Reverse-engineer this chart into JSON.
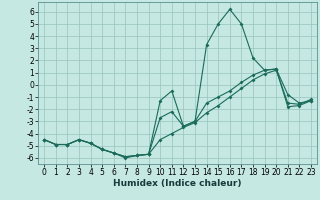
{
  "xlabel": "Humidex (Indice chaleur)",
  "bg_color": "#c5e8e3",
  "line_color": "#1a6b5a",
  "grid_color": "#99c4be",
  "xlim": [
    -0.5,
    23.5
  ],
  "ylim": [
    -6.5,
    6.8
  ],
  "yticks": [
    -6,
    -5,
    -4,
    -3,
    -2,
    -1,
    0,
    1,
    2,
    3,
    4,
    5,
    6
  ],
  "xticks": [
    0,
    1,
    2,
    3,
    4,
    5,
    6,
    7,
    8,
    9,
    10,
    11,
    12,
    13,
    14,
    15,
    16,
    17,
    18,
    19,
    20,
    21,
    22,
    23
  ],
  "line1_x": [
    0,
    1,
    2,
    3,
    4,
    5,
    6,
    7,
    8,
    9,
    10,
    11,
    12,
    13,
    14,
    15,
    16,
    17,
    18,
    19,
    20,
    21,
    22,
    23
  ],
  "line1_y": [
    -4.5,
    -4.9,
    -4.9,
    -4.5,
    -4.8,
    -5.3,
    -5.6,
    -6.0,
    -5.8,
    -5.7,
    -1.3,
    -0.5,
    -3.4,
    -3.0,
    3.3,
    5.0,
    6.2,
    5.0,
    2.2,
    1.2,
    1.3,
    -0.8,
    -1.5,
    -1.3
  ],
  "line2_x": [
    0,
    1,
    2,
    3,
    4,
    5,
    6,
    7,
    8,
    9,
    10,
    11,
    12,
    13,
    14,
    15,
    16,
    17,
    18,
    19,
    20,
    21,
    22,
    23
  ],
  "line2_y": [
    -4.5,
    -4.9,
    -4.9,
    -4.5,
    -4.8,
    -5.3,
    -5.6,
    -5.9,
    -5.8,
    -5.7,
    -2.7,
    -2.2,
    -3.4,
    -3.0,
    -1.5,
    -1.0,
    -0.5,
    0.2,
    0.8,
    1.2,
    1.3,
    -1.8,
    -1.7,
    -1.3
  ],
  "line3_x": [
    0,
    1,
    2,
    3,
    4,
    5,
    6,
    7,
    8,
    9,
    10,
    11,
    12,
    13,
    14,
    15,
    16,
    17,
    18,
    19,
    20,
    21,
    22,
    23
  ],
  "line3_y": [
    -4.5,
    -4.9,
    -4.9,
    -4.5,
    -4.8,
    -5.3,
    -5.6,
    -5.9,
    -5.8,
    -5.7,
    -4.5,
    -4.0,
    -3.5,
    -3.1,
    -2.3,
    -1.7,
    -1.0,
    -0.3,
    0.4,
    0.9,
    1.2,
    -1.5,
    -1.6,
    -1.2
  ],
  "tick_fontsize": 5.5,
  "xlabel_fontsize": 6.5
}
